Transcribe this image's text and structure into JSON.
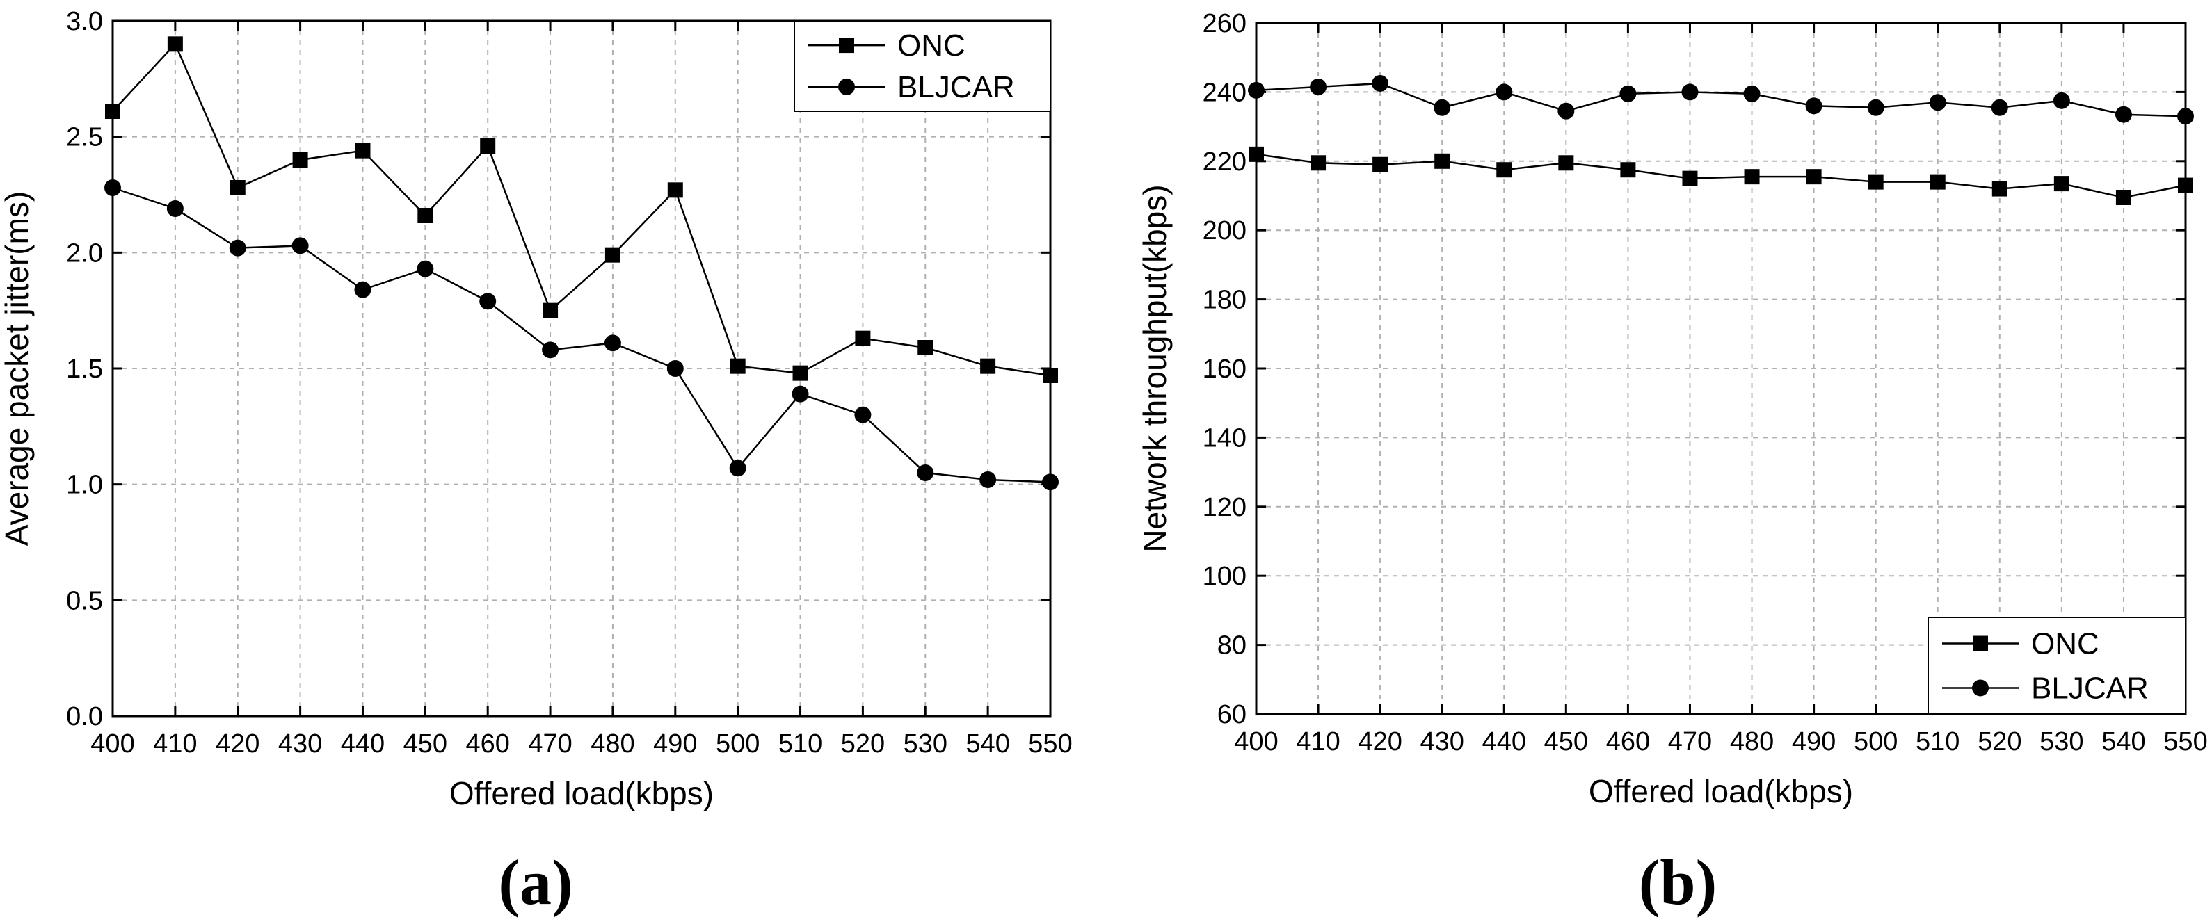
{
  "chart_data": [
    {
      "type": "line",
      "panel_label": "(a)",
      "title": "",
      "xlabel": "Offered load(kbps)",
      "ylabel": "Average packet jitter(ms)",
      "x": [
        400,
        410,
        420,
        430,
        440,
        450,
        460,
        470,
        480,
        490,
        500,
        510,
        520,
        530,
        540,
        550
      ],
      "xlim": [
        400,
        550
      ],
      "ylim": [
        0.0,
        3.0
      ],
      "x_ticks": [
        "400",
        "410",
        "420",
        "430",
        "440",
        "450",
        "460",
        "470",
        "480",
        "490",
        "500",
        "510",
        "520",
        "530",
        "540",
        "550"
      ],
      "y_ticks": [
        "0.0",
        "0.5",
        "1.0",
        "1.5",
        "2.0",
        "2.5",
        "3.0"
      ],
      "grid": true,
      "legend_position": "top-right",
      "series": [
        {
          "name": "ONC",
          "marker": "square",
          "values": [
            2.61,
            2.9,
            2.28,
            2.4,
            2.44,
            2.16,
            2.46,
            1.75,
            1.99,
            2.27,
            1.51,
            1.48,
            1.63,
            1.59,
            1.51,
            1.47
          ]
        },
        {
          "name": "BLJCAR",
          "marker": "circle",
          "values": [
            2.28,
            2.19,
            2.02,
            2.03,
            1.84,
            1.93,
            1.79,
            1.58,
            1.61,
            1.5,
            1.07,
            1.39,
            1.3,
            1.05,
            1.02,
            1.01
          ]
        }
      ]
    },
    {
      "type": "line",
      "panel_label": "(b)",
      "title": "",
      "xlabel": "Offered load(kbps)",
      "ylabel": "Network throughput(kbps)",
      "x": [
        400,
        410,
        420,
        430,
        440,
        450,
        460,
        470,
        480,
        490,
        500,
        510,
        520,
        530,
        540,
        550
      ],
      "xlim": [
        400,
        550
      ],
      "ylim": [
        60,
        260
      ],
      "x_ticks": [
        "400",
        "410",
        "420",
        "430",
        "440",
        "450",
        "460",
        "470",
        "480",
        "490",
        "500",
        "510",
        "520",
        "530",
        "540",
        "550"
      ],
      "y_ticks": [
        "60",
        "80",
        "100",
        "120",
        "140",
        "160",
        "180",
        "200",
        "220",
        "240",
        "260"
      ],
      "grid": true,
      "legend_position": "bottom-right",
      "series": [
        {
          "name": "ONC",
          "marker": "square",
          "values": [
            222,
            219.5,
            219,
            220,
            217.5,
            219.5,
            217.5,
            215,
            215.5,
            215.5,
            214,
            214,
            212,
            213.5,
            209.5,
            213
          ]
        },
        {
          "name": "BLJCAR",
          "marker": "circle",
          "values": [
            240.5,
            241.5,
            242.5,
            235.5,
            240,
            234.5,
            239.5,
            240,
            239.5,
            236,
            235.5,
            237,
            235.5,
            237.5,
            233.5,
            233
          ]
        }
      ]
    }
  ]
}
